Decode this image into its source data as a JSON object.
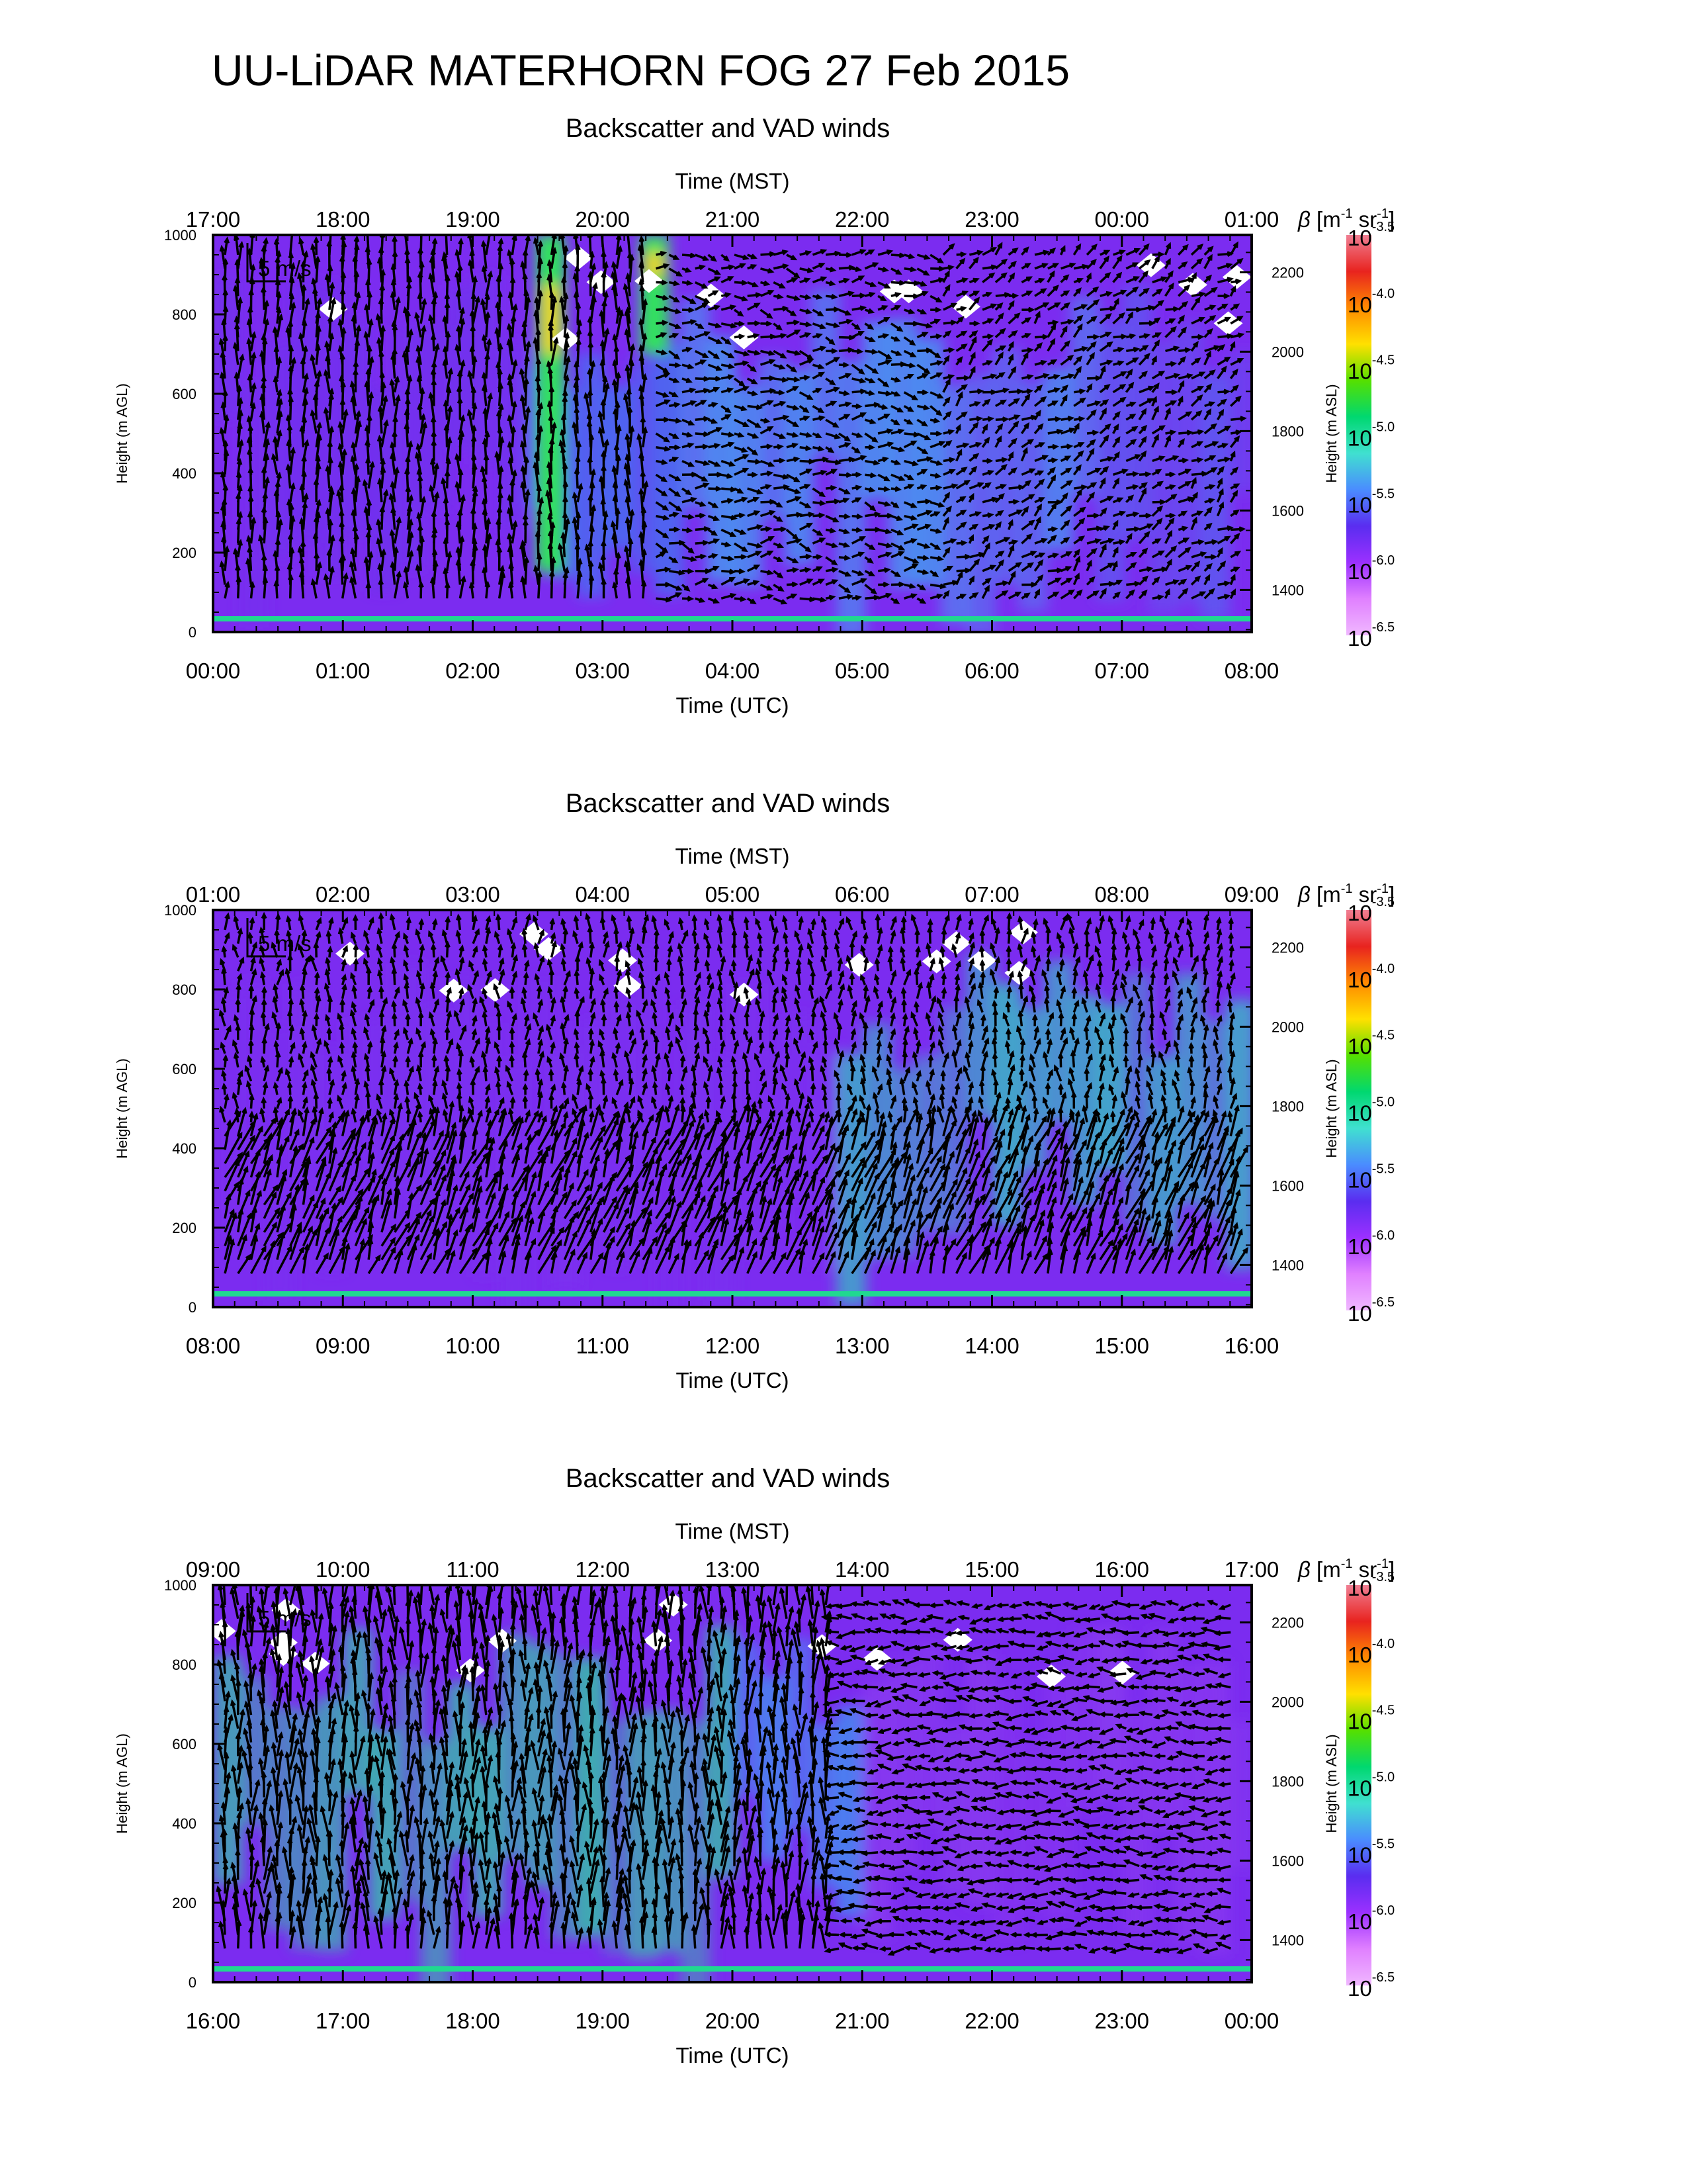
{
  "main_title": "UU-LiDAR MATERHORN FOG  27 Feb 2015",
  "panel_title": "Backscatter and VAD winds",
  "xlabel_top": "Time (MST)",
  "xlabel_bottom": "Time (UTC)",
  "ylabel_left": "Height (m AGL)",
  "ylabel_right": "Height (m ASL)",
  "scale_label": "5 m/s",
  "colorbar_label": "β [m⁻¹ sr⁻¹]",
  "colorbar_label_parts": {
    "beta": "β",
    "open": "[m",
    "exp1": "-1",
    "mid": " sr",
    "exp2": "-1",
    "close": "]"
  },
  "colorbar_ticks": [
    {
      "base": "10",
      "exp": "-3.5"
    },
    {
      "base": "10",
      "exp": "-4.0"
    },
    {
      "base": "10",
      "exp": "-4.5"
    },
    {
      "base": "10",
      "exp": "-5.0"
    },
    {
      "base": "10",
      "exp": "-5.5"
    },
    {
      "base": "10",
      "exp": "-6.0"
    },
    {
      "base": "10",
      "exp": "-6.5"
    }
  ],
  "colors": {
    "colorbar_stops": [
      "#f07f93",
      "#e8231f",
      "#ff8a00",
      "#ffe000",
      "#55e000",
      "#00d870",
      "#40e0d0",
      "#4a8cff",
      "#5a2df0",
      "#9b30ff",
      "#e080ff",
      "#f0b8ff"
    ],
    "background_low": "#8a2be2",
    "missing": "#ffffff",
    "arrows": "#000000"
  },
  "chart_data": [
    {
      "type": "heatmap",
      "title": "Backscatter and VAD winds",
      "xlabel": "Time (UTC)",
      "x2label": "Time (MST)",
      "ylabel": "Height (m AGL)",
      "y2label": "Height (m ASL)",
      "x_ticks_utc": [
        "00:00",
        "01:00",
        "02:00",
        "03:00",
        "04:00",
        "05:00",
        "06:00",
        "07:00",
        "08:00"
      ],
      "x_ticks_mst": [
        "17:00",
        "18:00",
        "19:00",
        "20:00",
        "21:00",
        "22:00",
        "23:00",
        "00:00",
        "01:00"
      ],
      "y_ticks": [
        0,
        200,
        400,
        600,
        800,
        1000
      ],
      "y2_ticks": [
        1400,
        1600,
        1800,
        2000,
        2200
      ],
      "ylim": [
        0,
        1000
      ],
      "y2lim": [
        1294,
        2294
      ],
      "xlim_utc_hours": [
        0,
        8
      ],
      "colorscale_log10": [
        -6.5,
        -3.5
      ],
      "features": [
        {
          "label": "high backscatter plume",
          "t_utc": 2.6,
          "z_m": [
            150,
            1000
          ],
          "log10_beta": -4.5
        },
        {
          "label": "high backscatter plume",
          "t_utc": 3.4,
          "z_m": [
            700,
            1000
          ],
          "log10_beta": -4.7
        }
      ]
    },
    {
      "type": "heatmap",
      "title": "Backscatter and VAD winds",
      "xlabel": "Time (UTC)",
      "x2label": "Time (MST)",
      "ylabel": "Height (m AGL)",
      "y2label": "Height (m ASL)",
      "x_ticks_utc": [
        "08:00",
        "09:00",
        "10:00",
        "11:00",
        "12:00",
        "13:00",
        "14:00",
        "15:00",
        "16:00"
      ],
      "x_ticks_mst": [
        "01:00",
        "02:00",
        "03:00",
        "04:00",
        "05:00",
        "06:00",
        "07:00",
        "08:00",
        "09:00"
      ],
      "y_ticks": [
        0,
        200,
        400,
        600,
        800,
        1000
      ],
      "y2_ticks": [
        1400,
        1600,
        1800,
        2000,
        2200
      ],
      "ylim": [
        0,
        1000
      ],
      "y2lim": [
        1294,
        2294
      ],
      "xlim_utc_hours": [
        8,
        16
      ],
      "colorscale_log10": [
        -6.5,
        -3.5
      ]
    },
    {
      "type": "heatmap",
      "title": "Backscatter and VAD winds",
      "xlabel": "Time (UTC)",
      "x2label": "Time (MST)",
      "ylabel": "Height (m AGL)",
      "y2label": "Height (m ASL)",
      "x_ticks_utc": [
        "16:00",
        "17:00",
        "18:00",
        "19:00",
        "20:00",
        "21:00",
        "22:00",
        "23:00",
        "00:00"
      ],
      "x_ticks_mst": [
        "09:00",
        "10:00",
        "11:00",
        "12:00",
        "13:00",
        "14:00",
        "15:00",
        "16:00",
        "17:00"
      ],
      "y_ticks": [
        0,
        200,
        400,
        600,
        800,
        1000
      ],
      "y2_ticks": [
        1400,
        1600,
        1800,
        2000,
        2200
      ],
      "ylim": [
        0,
        1000
      ],
      "y2lim": [
        1294,
        2294
      ],
      "xlim_utc_hours": [
        16,
        24
      ],
      "colorscale_log10": [
        -6.5,
        -3.5
      ]
    }
  ]
}
